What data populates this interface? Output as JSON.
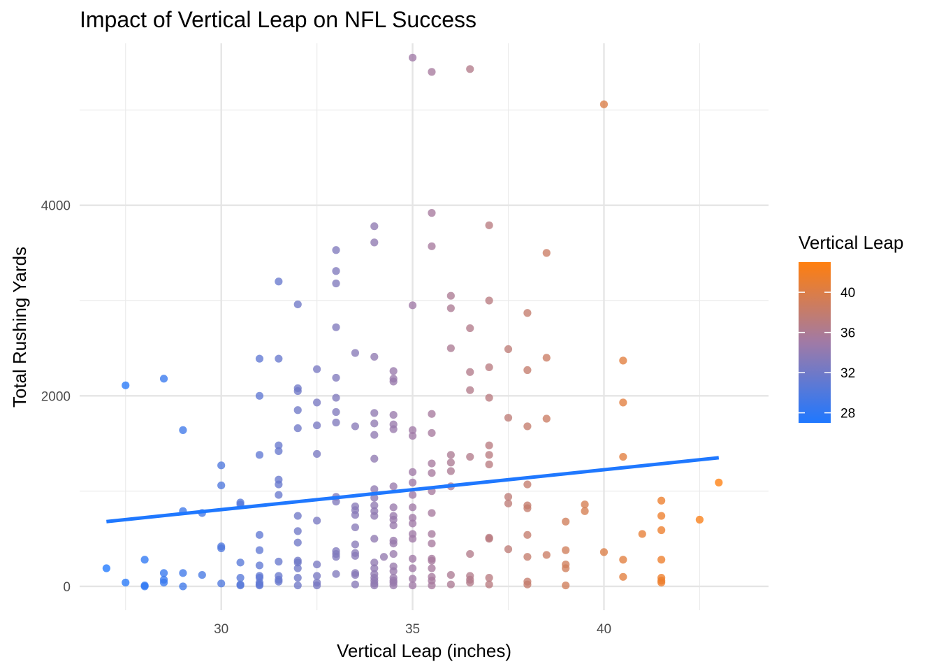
{
  "chart_data": {
    "type": "scatter",
    "title": "Impact of Vertical Leap on NFL Success",
    "xlabel": "Vertical Leap (inches)",
    "ylabel": "Total Rushing Yards",
    "xlim": [
      26.3,
      44.3
    ],
    "ylim": [
      -250,
      5700
    ],
    "x_ticks": [
      30,
      35,
      40
    ],
    "x_tick_labels": [
      "30",
      "35",
      "40"
    ],
    "y_ticks": [
      0,
      2000,
      4000
    ],
    "y_tick_labels": [
      "0",
      "2000",
      "4000"
    ],
    "grid": true,
    "color_scale": {
      "title": "Vertical Leap",
      "low": 27,
      "high": 43,
      "low_color": "#1f78ff",
      "high_color": "#ff7f0e",
      "ticks": [
        28,
        32,
        36,
        40
      ],
      "tick_labels": [
        "28",
        "32",
        "36",
        "40"
      ],
      "position": "right"
    },
    "trend_line": {
      "method": "linear",
      "color": "#1f78ff",
      "x": [
        27,
        43
      ],
      "y": [
        680,
        1350
      ]
    },
    "points": [
      {
        "x": 27,
        "y": 190
      },
      {
        "x": 27.5,
        "y": 2110
      },
      {
        "x": 27.5,
        "y": 40
      },
      {
        "x": 28,
        "y": 10
      },
      {
        "x": 28,
        "y": 0
      },
      {
        "x": 28,
        "y": 280
      },
      {
        "x": 28.5,
        "y": 2180
      },
      {
        "x": 28.5,
        "y": 140
      },
      {
        "x": 28.5,
        "y": 70
      },
      {
        "x": 28.5,
        "y": 40
      },
      {
        "x": 29,
        "y": 1640
      },
      {
        "x": 29,
        "y": 790
      },
      {
        "x": 29,
        "y": 140
      },
      {
        "x": 29,
        "y": 0
      },
      {
        "x": 29.5,
        "y": 770
      },
      {
        "x": 29.5,
        "y": 120
      },
      {
        "x": 30,
        "y": 1270
      },
      {
        "x": 30,
        "y": 1060
      },
      {
        "x": 30,
        "y": 420
      },
      {
        "x": 30,
        "y": 400
      },
      {
        "x": 30,
        "y": 30
      },
      {
        "x": 30.5,
        "y": 880
      },
      {
        "x": 30.5,
        "y": 860
      },
      {
        "x": 30.5,
        "y": 250
      },
      {
        "x": 30.5,
        "y": 90
      },
      {
        "x": 30.5,
        "y": 20
      },
      {
        "x": 30.5,
        "y": 10
      },
      {
        "x": 31,
        "y": 2390
      },
      {
        "x": 31,
        "y": 2000
      },
      {
        "x": 31,
        "y": 1380
      },
      {
        "x": 31,
        "y": 540
      },
      {
        "x": 31,
        "y": 380
      },
      {
        "x": 31,
        "y": 220
      },
      {
        "x": 31,
        "y": 110
      },
      {
        "x": 31,
        "y": 90
      },
      {
        "x": 31,
        "y": 40
      },
      {
        "x": 31,
        "y": 20
      },
      {
        "x": 31,
        "y": 10
      },
      {
        "x": 31.5,
        "y": 3200
      },
      {
        "x": 31.5,
        "y": 2390
      },
      {
        "x": 31.5,
        "y": 1480
      },
      {
        "x": 31.5,
        "y": 1420
      },
      {
        "x": 31.5,
        "y": 1120
      },
      {
        "x": 31.5,
        "y": 1070
      },
      {
        "x": 31.5,
        "y": 960
      },
      {
        "x": 31.5,
        "y": 260
      },
      {
        "x": 31.5,
        "y": 110
      },
      {
        "x": 31.5,
        "y": 70
      },
      {
        "x": 31.5,
        "y": 50
      },
      {
        "x": 32,
        "y": 2960
      },
      {
        "x": 32,
        "y": 2080
      },
      {
        "x": 32,
        "y": 2050
      },
      {
        "x": 32,
        "y": 1850
      },
      {
        "x": 32,
        "y": 1660
      },
      {
        "x": 32,
        "y": 740
      },
      {
        "x": 32,
        "y": 580
      },
      {
        "x": 32,
        "y": 460
      },
      {
        "x": 32,
        "y": 270
      },
      {
        "x": 32,
        "y": 250
      },
      {
        "x": 32,
        "y": 190
      },
      {
        "x": 32,
        "y": 90
      },
      {
        "x": 32,
        "y": 10
      },
      {
        "x": 32.5,
        "y": 2280
      },
      {
        "x": 32.5,
        "y": 1930
      },
      {
        "x": 32.5,
        "y": 1690
      },
      {
        "x": 32.5,
        "y": 1390
      },
      {
        "x": 32.5,
        "y": 690
      },
      {
        "x": 32.5,
        "y": 230
      },
      {
        "x": 32.5,
        "y": 110
      },
      {
        "x": 32.5,
        "y": 40
      },
      {
        "x": 32.5,
        "y": 10
      },
      {
        "x": 33,
        "y": 3530
      },
      {
        "x": 33,
        "y": 3310
      },
      {
        "x": 33,
        "y": 3180
      },
      {
        "x": 33,
        "y": 2720
      },
      {
        "x": 33,
        "y": 2190
      },
      {
        "x": 33,
        "y": 1980
      },
      {
        "x": 33,
        "y": 1830
      },
      {
        "x": 33,
        "y": 1720
      },
      {
        "x": 33,
        "y": 940
      },
      {
        "x": 33,
        "y": 890
      },
      {
        "x": 33,
        "y": 370
      },
      {
        "x": 33,
        "y": 340
      },
      {
        "x": 33,
        "y": 310
      },
      {
        "x": 33,
        "y": 130
      },
      {
        "x": 33.5,
        "y": 2450
      },
      {
        "x": 33.5,
        "y": 1680
      },
      {
        "x": 33.5,
        "y": 840
      },
      {
        "x": 33.5,
        "y": 800
      },
      {
        "x": 33.5,
        "y": 750
      },
      {
        "x": 33.5,
        "y": 620
      },
      {
        "x": 33.5,
        "y": 440
      },
      {
        "x": 33.5,
        "y": 350
      },
      {
        "x": 33.5,
        "y": 320
      },
      {
        "x": 33.5,
        "y": 140
      },
      {
        "x": 33.5,
        "y": 120
      },
      {
        "x": 33.5,
        "y": 20
      },
      {
        "x": 34,
        "y": 3780
      },
      {
        "x": 34,
        "y": 3610
      },
      {
        "x": 34,
        "y": 2410
      },
      {
        "x": 34,
        "y": 1820
      },
      {
        "x": 34,
        "y": 1710
      },
      {
        "x": 34,
        "y": 1590
      },
      {
        "x": 34,
        "y": 1340
      },
      {
        "x": 34,
        "y": 1020
      },
      {
        "x": 34,
        "y": 930
      },
      {
        "x": 34,
        "y": 850
      },
      {
        "x": 34,
        "y": 790
      },
      {
        "x": 34,
        "y": 740
      },
      {
        "x": 34,
        "y": 500
      },
      {
        "x": 34,
        "y": 250
      },
      {
        "x": 34,
        "y": 190
      },
      {
        "x": 34,
        "y": 130
      },
      {
        "x": 34,
        "y": 90
      },
      {
        "x": 34,
        "y": 60
      },
      {
        "x": 34,
        "y": 30
      },
      {
        "x": 34,
        "y": 10
      },
      {
        "x": 34.25,
        "y": 310
      },
      {
        "x": 34.5,
        "y": 2260
      },
      {
        "x": 34.5,
        "y": 2180
      },
      {
        "x": 34.5,
        "y": 2150
      },
      {
        "x": 34.5,
        "y": 1800
      },
      {
        "x": 34.5,
        "y": 1700
      },
      {
        "x": 34.5,
        "y": 1650
      },
      {
        "x": 34.5,
        "y": 1050
      },
      {
        "x": 34.5,
        "y": 830
      },
      {
        "x": 34.5,
        "y": 740
      },
      {
        "x": 34.5,
        "y": 700
      },
      {
        "x": 34.5,
        "y": 640
      },
      {
        "x": 34.5,
        "y": 480
      },
      {
        "x": 34.5,
        "y": 450
      },
      {
        "x": 34.5,
        "y": 340
      },
      {
        "x": 34.5,
        "y": 210
      },
      {
        "x": 34.5,
        "y": 160
      },
      {
        "x": 34.5,
        "y": 90
      },
      {
        "x": 34.5,
        "y": 60
      },
      {
        "x": 34.5,
        "y": 40
      },
      {
        "x": 34.5,
        "y": 10
      },
      {
        "x": 35,
        "y": 5550
      },
      {
        "x": 35,
        "y": 2950
      },
      {
        "x": 35,
        "y": 1640
      },
      {
        "x": 35,
        "y": 1580
      },
      {
        "x": 35,
        "y": 1200
      },
      {
        "x": 35,
        "y": 1090
      },
      {
        "x": 35,
        "y": 960
      },
      {
        "x": 35,
        "y": 830
      },
      {
        "x": 35,
        "y": 720
      },
      {
        "x": 35,
        "y": 660
      },
      {
        "x": 35,
        "y": 550
      },
      {
        "x": 35,
        "y": 500
      },
      {
        "x": 35,
        "y": 290
      },
      {
        "x": 35,
        "y": 190
      },
      {
        "x": 35,
        "y": 80
      },
      {
        "x": 35,
        "y": 10
      },
      {
        "x": 35.5,
        "y": 5400
      },
      {
        "x": 35.5,
        "y": 3920
      },
      {
        "x": 35.5,
        "y": 3570
      },
      {
        "x": 35.5,
        "y": 1810
      },
      {
        "x": 35.5,
        "y": 1610
      },
      {
        "x": 35.5,
        "y": 1290
      },
      {
        "x": 35.5,
        "y": 1190
      },
      {
        "x": 35.5,
        "y": 1000
      },
      {
        "x": 35.5,
        "y": 770
      },
      {
        "x": 35.5,
        "y": 550
      },
      {
        "x": 35.5,
        "y": 450
      },
      {
        "x": 35.5,
        "y": 290
      },
      {
        "x": 35.5,
        "y": 270
      },
      {
        "x": 35.5,
        "y": 190
      },
      {
        "x": 35.5,
        "y": 100
      },
      {
        "x": 35.5,
        "y": 60
      },
      {
        "x": 35.5,
        "y": 10
      },
      {
        "x": 36,
        "y": 3050
      },
      {
        "x": 36,
        "y": 2920
      },
      {
        "x": 36,
        "y": 2500
      },
      {
        "x": 36,
        "y": 1380
      },
      {
        "x": 36,
        "y": 1300
      },
      {
        "x": 36,
        "y": 1210
      },
      {
        "x": 36,
        "y": 1050
      },
      {
        "x": 36,
        "y": 120
      },
      {
        "x": 36,
        "y": 20
      },
      {
        "x": 36.5,
        "y": 5430
      },
      {
        "x": 36.5,
        "y": 2710
      },
      {
        "x": 36.5,
        "y": 2250
      },
      {
        "x": 36.5,
        "y": 2060
      },
      {
        "x": 36.5,
        "y": 1360
      },
      {
        "x": 36.5,
        "y": 340
      },
      {
        "x": 36.5,
        "y": 110
      },
      {
        "x": 36.5,
        "y": 70
      },
      {
        "x": 36.5,
        "y": 40
      },
      {
        "x": 37,
        "y": 3790
      },
      {
        "x": 37,
        "y": 3000
      },
      {
        "x": 37,
        "y": 2300
      },
      {
        "x": 37,
        "y": 1980
      },
      {
        "x": 37,
        "y": 1480
      },
      {
        "x": 37,
        "y": 1380
      },
      {
        "x": 37,
        "y": 1280
      },
      {
        "x": 37,
        "y": 510
      },
      {
        "x": 37,
        "y": 500
      },
      {
        "x": 37,
        "y": 90
      },
      {
        "x": 37,
        "y": 20
      },
      {
        "x": 37.5,
        "y": 2490
      },
      {
        "x": 37.5,
        "y": 1770
      },
      {
        "x": 37.5,
        "y": 940
      },
      {
        "x": 37.5,
        "y": 870
      },
      {
        "x": 37.5,
        "y": 390
      },
      {
        "x": 38,
        "y": 2870
      },
      {
        "x": 38,
        "y": 2270
      },
      {
        "x": 38,
        "y": 1680
      },
      {
        "x": 38,
        "y": 1070
      },
      {
        "x": 38,
        "y": 850
      },
      {
        "x": 38,
        "y": 820
      },
      {
        "x": 38,
        "y": 540
      },
      {
        "x": 38,
        "y": 310
      },
      {
        "x": 38,
        "y": 50
      },
      {
        "x": 38,
        "y": 20
      },
      {
        "x": 38.5,
        "y": 3500
      },
      {
        "x": 38.5,
        "y": 2400
      },
      {
        "x": 38.5,
        "y": 1760
      },
      {
        "x": 38.5,
        "y": 330
      },
      {
        "x": 39,
        "y": 680
      },
      {
        "x": 39,
        "y": 380
      },
      {
        "x": 39,
        "y": 230
      },
      {
        "x": 39,
        "y": 190
      },
      {
        "x": 39,
        "y": 10
      },
      {
        "x": 39.5,
        "y": 860
      },
      {
        "x": 39.5,
        "y": 790
      },
      {
        "x": 40,
        "y": 5060
      },
      {
        "x": 40,
        "y": 360
      },
      {
        "x": 40.5,
        "y": 2370
      },
      {
        "x": 40.5,
        "y": 1930
      },
      {
        "x": 40.5,
        "y": 1360
      },
      {
        "x": 40.5,
        "y": 280
      },
      {
        "x": 40.5,
        "y": 100
      },
      {
        "x": 41,
        "y": 550
      },
      {
        "x": 41.5,
        "y": 900
      },
      {
        "x": 41.5,
        "y": 740
      },
      {
        "x": 41.5,
        "y": 590
      },
      {
        "x": 41.5,
        "y": 280
      },
      {
        "x": 41.5,
        "y": 90
      },
      {
        "x": 41.5,
        "y": 60
      },
      {
        "x": 41.5,
        "y": 40
      },
      {
        "x": 42.5,
        "y": 700
      },
      {
        "x": 43,
        "y": 1090
      }
    ]
  }
}
